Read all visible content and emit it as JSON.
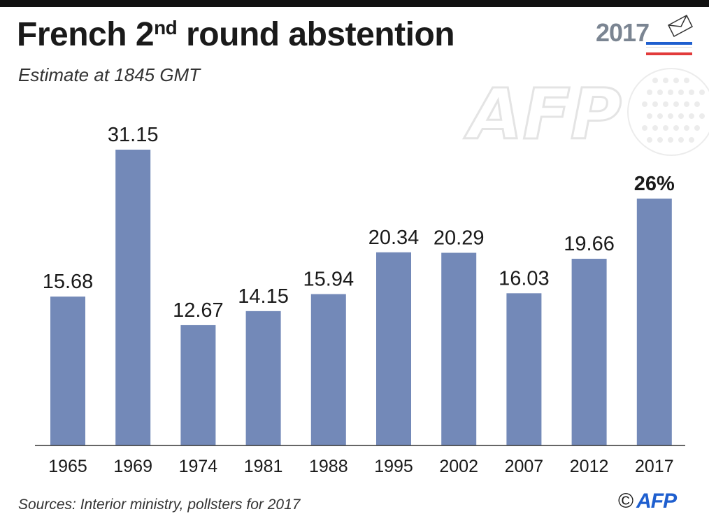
{
  "header": {
    "title_main": "French 2",
    "title_sup": "nd",
    "title_rest": " round abstention",
    "subtitle": "Estimate at 1845 GMT"
  },
  "badge": {
    "year": "2017",
    "colors": [
      "#1f5fcf",
      "#ffffff",
      "#e23b3b"
    ]
  },
  "watermark": {
    "text": "AFP"
  },
  "footer": {
    "source": "Sources: Interior ministry, pollsters for 2017",
    "copyright_symbol": "©",
    "copyright_brand": "AFP"
  },
  "chart_data": {
    "type": "bar",
    "categories": [
      "1965",
      "1969",
      "1974",
      "1981",
      "1988",
      "1995",
      "2002",
      "2007",
      "2012",
      "2017"
    ],
    "values": [
      15.68,
      31.15,
      12.67,
      14.15,
      15.94,
      20.34,
      20.29,
      16.03,
      19.66,
      26
    ],
    "labels": [
      "15.68",
      "31.15",
      "12.67",
      "14.15",
      "15.94",
      "20.34",
      "20.29",
      "16.03",
      "19.66",
      "26%"
    ],
    "highlight_index": 9,
    "bar_color": "#7389b8",
    "ylim": [
      0,
      31.15
    ],
    "grid": false,
    "xlabel": "",
    "ylabel": ""
  }
}
